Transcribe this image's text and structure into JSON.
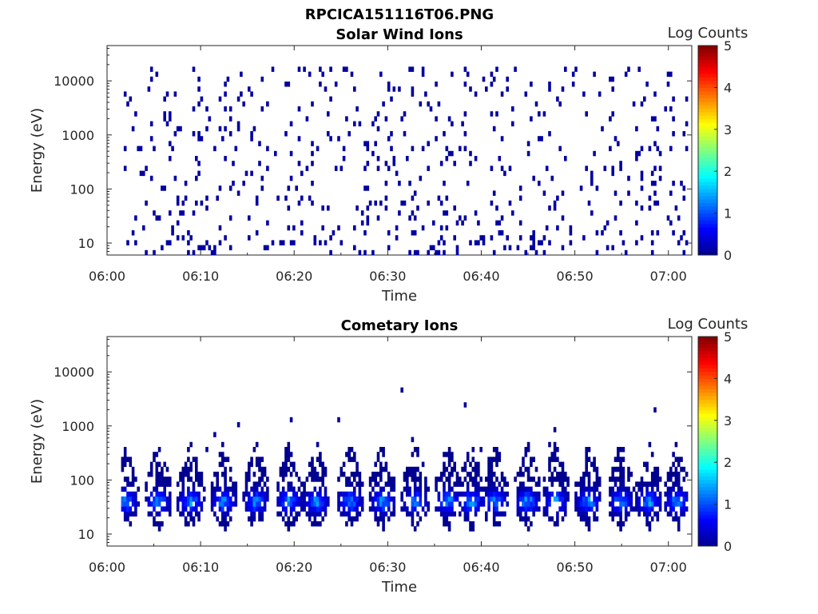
{
  "figure_title": "RPCICA151116T06.PNG",
  "colors": {
    "data_mark": "#00008f",
    "colormap": [
      "#00008f",
      "#0000ff",
      "#0080ff",
      "#00ffff",
      "#80ff80",
      "#ffff00",
      "#ff8000",
      "#ff0000",
      "#800000"
    ]
  },
  "chart_data": [
    {
      "type": "heatmap",
      "title": "Solar Wind Ions",
      "xlabel": "Time",
      "ylabel": "Energy (eV)",
      "xticks": [
        "06:00",
        "06:10",
        "06:20",
        "06:30",
        "06:40",
        "06:50",
        "07:00"
      ],
      "x_range_minutes": [
        0,
        62.5
      ],
      "yscale": "log",
      "ylim": [
        6,
        45000
      ],
      "yticks": [
        10,
        100,
        1000,
        10000
      ],
      "ytick_labels": [
        "10",
        "100",
        "1000",
        "10000"
      ],
      "colorbar": {
        "label": "Log Counts",
        "range": [
          0,
          5
        ],
        "ticks": [
          "0",
          "1",
          "2",
          "3",
          "4",
          "5"
        ]
      },
      "data_time_range_minutes": [
        1.5,
        62.0
      ],
      "description_of_values": "sparse scattered single counts (log counts ~0-0.3) spread across 6 eV to 20 keV",
      "level_log_counts": 0.1
    },
    {
      "type": "heatmap",
      "title": "Cometary Ions",
      "xlabel": "Time",
      "ylabel": "Energy (eV)",
      "xticks": [
        "06:00",
        "06:10",
        "06:20",
        "06:30",
        "06:40",
        "06:50",
        "07:00"
      ],
      "x_range_minutes": [
        0,
        62.5
      ],
      "yscale": "log",
      "ylim": [
        6,
        45000
      ],
      "yticks": [
        10,
        100,
        1000,
        10000
      ],
      "ytick_labels": [
        "10",
        "100",
        "1000",
        "10000"
      ],
      "colorbar": {
        "label": "Log Counts",
        "range": [
          0,
          5
        ],
        "ticks": [
          "0",
          "1",
          "2",
          "3",
          "4",
          "5"
        ]
      },
      "data_time_range_minutes": [
        1.5,
        62.0
      ],
      "bursts_minutes": [
        1.8,
        5.3,
        8.8,
        12.3,
        15.8,
        19.3,
        22.3,
        25.8,
        29.3,
        32.8,
        36.3,
        38.8,
        41.3,
        44.8,
        47.8,
        51.3,
        54.8,
        57.8,
        60.8
      ],
      "peak_energy_ev": 40,
      "peak_log_counts": 1.5
    }
  ]
}
